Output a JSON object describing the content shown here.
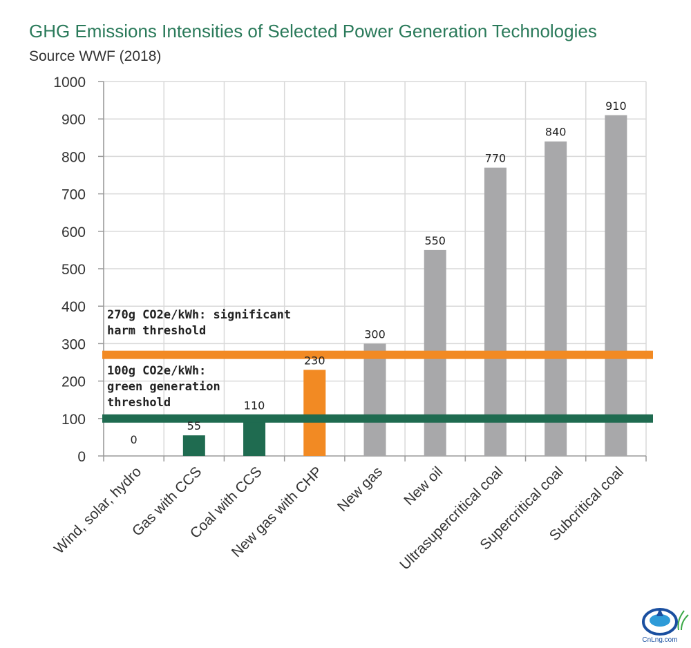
{
  "title": "GHG Emissions Intensities of Selected Power Generation Technologies",
  "subtitle": "Source WWF (2018)",
  "colors": {
    "title": "#2a7a5a",
    "gray_bar": "#a8a8aa",
    "green_bar": "#1f6b50",
    "orange_bar": "#f28a23",
    "orange_line": "#f28a23",
    "green_line": "#1f6b50",
    "grid": "#d9d9d9"
  },
  "chart_data": {
    "type": "bar",
    "title": "GHG Emissions Intensities of Selected Power Generation Technologies",
    "subtitle": "Source WWF (2018)",
    "categories": [
      "Wind, solar, hydro",
      "Gas with CCS",
      "Coal with CCS",
      "New gas with CHP",
      "New gas",
      "New oil",
      "Ultrasupercritical coal",
      "Supercritical coal",
      "Subcritical coal"
    ],
    "values": [
      0,
      55,
      110,
      230,
      300,
      550,
      770,
      840,
      910
    ],
    "value_labels": [
      "0",
      "55",
      "110",
      "230",
      "300",
      "550",
      "770",
      "840",
      "910"
    ],
    "bar_colors": [
      "green",
      "green",
      "green",
      "orange",
      "gray",
      "gray",
      "gray",
      "gray",
      "gray"
    ],
    "ylim": [
      0,
      1000
    ],
    "yticks": [
      0,
      100,
      200,
      300,
      400,
      500,
      600,
      700,
      800,
      900,
      1000
    ],
    "ytick_labels": [
      "0",
      "100",
      "200",
      "300",
      "400",
      "500",
      "600",
      "700",
      "800",
      "900",
      "1000"
    ],
    "xlabel": "",
    "ylabel": "",
    "grid": true,
    "legend": "none",
    "thresholds": [
      {
        "value": 270,
        "color": "orange",
        "label_lines": [
          "270g CO2e/kWh: significant",
          "harm threshold"
        ]
      },
      {
        "value": 100,
        "color": "green",
        "label_lines": [
          "100g CO2e/kWh:",
          "green generation",
          "threshold"
        ]
      }
    ]
  },
  "logo": {
    "text": "CnLng.com"
  }
}
